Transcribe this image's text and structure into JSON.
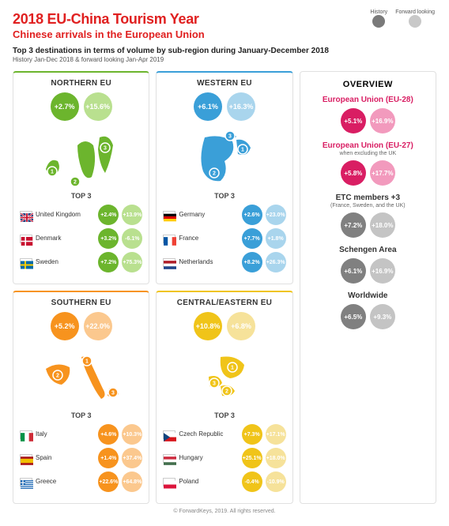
{
  "colors": {
    "accent_red": "#e02020",
    "legend_dark": "#7a7a7a",
    "legend_light": "#c8c8c8",
    "green_dark": "#6cb52d",
    "green_light": "#b9e08f",
    "blue_dark": "#3a9fd8",
    "blue_light": "#a9d5ed",
    "orange_dark": "#f7931e",
    "orange_light": "#fbc88e",
    "yellow_dark": "#f0c419",
    "yellow_light": "#f6e29a",
    "pink_dark": "#d91e63",
    "pink_light": "#f29abd",
    "grey_dark": "#808080",
    "grey_light": "#c4c4c4"
  },
  "header": {
    "title": "2018 EU-China Tourism Year",
    "subtitle": "Chinese arrivals in the European Union",
    "desc_line1": "Top 3 destinations in terms of volume by sub-region during January-December 2018",
    "desc_line2": "History Jan-Dec 2018 & forward looking Jan-Apr 2019"
  },
  "legend": {
    "history_label": "History",
    "forward_label": "Forward looking"
  },
  "regions": [
    {
      "key": "northern",
      "title": "NORTHERN EU",
      "history": "+2.7%",
      "forward": "+15.6%",
      "color_dark": "#6cb52d",
      "color_light": "#b9e08f",
      "top3": [
        {
          "name": "United Kingdom",
          "history": "+2.4%",
          "forward": "+13.9%",
          "flag": "uk"
        },
        {
          "name": "Denmark",
          "history": "+3.2%",
          "forward": "-6.1%",
          "flag": "dk"
        },
        {
          "name": "Sweden",
          "history": "+7.2%",
          "forward": "+75.3%",
          "flag": "se"
        }
      ]
    },
    {
      "key": "western",
      "title": "WESTERN EU",
      "history": "+6.1%",
      "forward": "+16.3%",
      "color_dark": "#3a9fd8",
      "color_light": "#a9d5ed",
      "top3": [
        {
          "name": "Germany",
          "history": "+2.6%",
          "forward": "+23.0%",
          "flag": "de"
        },
        {
          "name": "France",
          "history": "+7.7%",
          "forward": "+1.8%",
          "flag": "fr"
        },
        {
          "name": "Netherlands",
          "history": "+8.2%",
          "forward": "+26.3%",
          "flag": "nl"
        }
      ]
    },
    {
      "key": "southern",
      "title": "SOUTHERN EU",
      "history": "+5.2%",
      "forward": "+22.0%",
      "color_dark": "#f7931e",
      "color_light": "#fbc88e",
      "top3": [
        {
          "name": "Italy",
          "history": "+4.6%",
          "forward": "+10.3%",
          "flag": "it"
        },
        {
          "name": "Spain",
          "history": "+1.4%",
          "forward": "+37.4%",
          "flag": "es"
        },
        {
          "name": "Greece",
          "history": "+22.6%",
          "forward": "+64.8%",
          "flag": "gr"
        }
      ]
    },
    {
      "key": "central",
      "title": "CENTRAL/EASTERN EU",
      "history": "+10.8%",
      "forward": "+6.8%",
      "color_dark": "#f0c419",
      "color_light": "#f6e29a",
      "top3": [
        {
          "name": "Czech Republic",
          "history": "+7.3%",
          "forward": "+17.1%",
          "flag": "cz"
        },
        {
          "name": "Hungary",
          "history": "+25.1%",
          "forward": "+18.0%",
          "flag": "hu"
        },
        {
          "name": "Poland",
          "history": "-0.4%",
          "forward": "-10.9%",
          "flag": "pl"
        }
      ]
    }
  ],
  "overview": {
    "title": "OVERVIEW",
    "items": [
      {
        "name": "European Union (EU-28)",
        "name_color": "#d91e63",
        "sub": "",
        "history": "+5.1%",
        "forward": "+16.9%",
        "dark": "#d91e63",
        "light": "#f29abd"
      },
      {
        "name": "European Union (EU-27)",
        "name_color": "#d91e63",
        "sub": "when excluding the UK",
        "history": "+5.8%",
        "forward": "+17.7%",
        "dark": "#d91e63",
        "light": "#f29abd"
      },
      {
        "name": "ETC members +3",
        "name_color": "#333",
        "sub": "(France, Sweden, and the UK)",
        "history": "+7.2%",
        "forward": "+18.0%",
        "dark": "#808080",
        "light": "#c4c4c4"
      },
      {
        "name": "Schengen Area",
        "name_color": "#333",
        "sub": "",
        "history": "+6.1%",
        "forward": "+16.9%",
        "dark": "#808080",
        "light": "#c4c4c4"
      },
      {
        "name": "Worldwide",
        "name_color": "#333",
        "sub": "",
        "history": "+6.5%",
        "forward": "+9.3%",
        "dark": "#808080",
        "light": "#c4c4c4"
      }
    ]
  },
  "footer": "© ForwardKeys, 2019. All rights reserved.",
  "labels": {
    "top3": "TOP 3"
  }
}
